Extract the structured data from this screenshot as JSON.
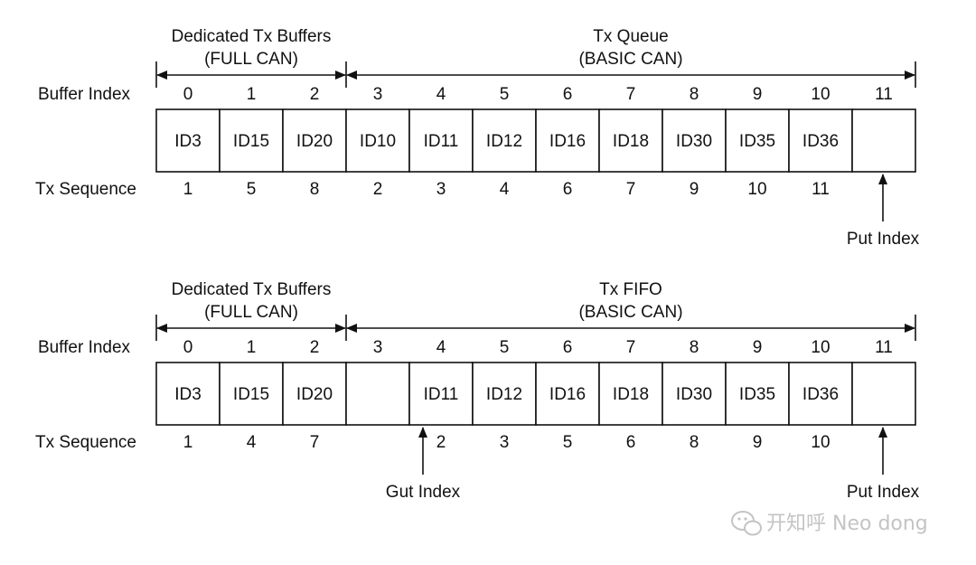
{
  "diagrams": [
    {
      "left_group": {
        "line1": "Dedicated Tx Buffers",
        "line2": "(FULL CAN)"
      },
      "right_group": {
        "line1": "Tx Queue",
        "line2": "(BASIC CAN)"
      },
      "row_labels": {
        "buffer_index": "Buffer Index",
        "tx_sequence": "Tx Sequence"
      },
      "buffer_indices": [
        "0",
        "1",
        "2",
        "3",
        "4",
        "5",
        "6",
        "7",
        "8",
        "9",
        "10",
        "11"
      ],
      "cells": [
        "ID3",
        "ID15",
        "ID20",
        "ID10",
        "ID11",
        "ID12",
        "ID16",
        "ID18",
        "ID30",
        "ID35",
        "ID36",
        ""
      ],
      "sequence": [
        "1",
        "5",
        "8",
        "2",
        "3",
        "4",
        "6",
        "7",
        "9",
        "10",
        "11",
        ""
      ],
      "pointers": [
        {
          "label": "Put Index",
          "column": 11
        }
      ]
    },
    {
      "left_group": {
        "line1": "Dedicated Tx Buffers",
        "line2": "(FULL CAN)"
      },
      "right_group": {
        "line1": "Tx FIFO",
        "line2": "(BASIC CAN)"
      },
      "row_labels": {
        "buffer_index": "Buffer Index",
        "tx_sequence": "Tx Sequence"
      },
      "buffer_indices": [
        "0",
        "1",
        "2",
        "3",
        "4",
        "5",
        "6",
        "7",
        "8",
        "9",
        "10",
        "11"
      ],
      "cells": [
        "ID3",
        "ID15",
        "ID20",
        "",
        "ID11",
        "ID12",
        "ID16",
        "ID18",
        "ID30",
        "ID35",
        "ID36",
        ""
      ],
      "sequence": [
        "1",
        "4",
        "7",
        "",
        "2",
        "3",
        "5",
        "6",
        "8",
        "9",
        "10",
        ""
      ],
      "pointers": [
        {
          "label": "Gut Index",
          "column": 4
        },
        {
          "label": "Put Index",
          "column": 11
        }
      ]
    }
  ],
  "watermark": {
    "text": "开知呼 Neo dong",
    "icon": "wechat-icon"
  }
}
